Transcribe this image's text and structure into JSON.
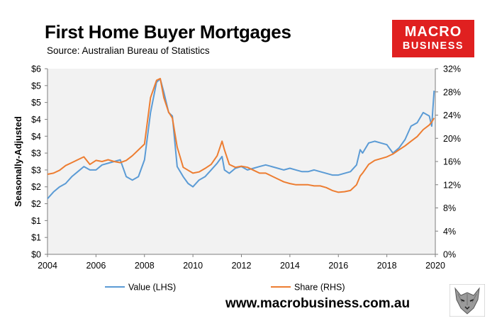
{
  "header": {
    "title": "First Home Buyer Mortgages",
    "subtitle": "Source: Australian Bureau of Statistics"
  },
  "logo": {
    "line1": "MACRO",
    "line2": "BUSINESS"
  },
  "footer": {
    "website": "www.macrobusiness.com.au"
  },
  "colors": {
    "value_series": "#5b9bd5",
    "share_series": "#ed7d31",
    "plot_bg": "#f2f2f2",
    "logo_bg": "#e02020"
  },
  "chart_data": {
    "type": "line",
    "title": "First Home Buyer Mortgages",
    "ylabel": "Seasonally-Adjusted",
    "xlim": [
      2004,
      2020
    ],
    "x_ticks": [
      "2004",
      "2006",
      "2008",
      "2010",
      "2012",
      "2014",
      "2016",
      "2018",
      "2020"
    ],
    "y_left_ticks": [
      "$0",
      "$1",
      "$1",
      "$2",
      "$2",
      "$3",
      "$3",
      "$4",
      "$4",
      "$5",
      "$5",
      "$6"
    ],
    "y_right_ticks": [
      "0%",
      "4%",
      "8%",
      "12%",
      "16%",
      "20%",
      "24%",
      "28%",
      "32%"
    ],
    "ylim_left": [
      0,
      5.5
    ],
    "ylim_right": [
      0,
      32
    ],
    "legend_position": "bottom",
    "grid": false,
    "series": [
      {
        "name": "Value (LHS)",
        "axis": "left",
        "x": [
          2004.0,
          2004.25,
          2004.5,
          2004.75,
          2005.0,
          2005.25,
          2005.5,
          2005.75,
          2006.0,
          2006.25,
          2006.5,
          2006.75,
          2007.0,
          2007.25,
          2007.5,
          2007.75,
          2008.0,
          2008.25,
          2008.5,
          2008.65,
          2008.8,
          2009.0,
          2009.15,
          2009.35,
          2009.6,
          2009.8,
          2010.0,
          2010.25,
          2010.5,
          2010.75,
          2011.0,
          2011.2,
          2011.3,
          2011.5,
          2011.75,
          2012.0,
          2012.25,
          2012.5,
          2012.75,
          2013.0,
          2013.25,
          2013.5,
          2013.75,
          2014.0,
          2014.25,
          2014.5,
          2014.75,
          2015.0,
          2015.25,
          2015.5,
          2015.75,
          2016.0,
          2016.25,
          2016.5,
          2016.75,
          2016.9,
          2017.0,
          2017.25,
          2017.5,
          2017.75,
          2018.0,
          2018.25,
          2018.5,
          2018.75,
          2019.0,
          2019.25,
          2019.5,
          2019.75,
          2019.85,
          2019.95
        ],
        "values": [
          1.65,
          1.85,
          2.0,
          2.1,
          2.3,
          2.45,
          2.6,
          2.5,
          2.5,
          2.65,
          2.7,
          2.75,
          2.8,
          2.3,
          2.2,
          2.3,
          2.8,
          4.2,
          5.1,
          5.2,
          4.8,
          4.2,
          4.1,
          2.6,
          2.3,
          2.1,
          2.0,
          2.2,
          2.3,
          2.5,
          2.7,
          2.9,
          2.5,
          2.4,
          2.55,
          2.6,
          2.5,
          2.55,
          2.6,
          2.65,
          2.6,
          2.55,
          2.5,
          2.55,
          2.5,
          2.45,
          2.45,
          2.5,
          2.45,
          2.4,
          2.35,
          2.35,
          2.4,
          2.45,
          2.65,
          3.1,
          3.0,
          3.3,
          3.35,
          3.3,
          3.25,
          3.0,
          3.15,
          3.4,
          3.8,
          3.9,
          4.2,
          4.1,
          3.8,
          4.85
        ]
      },
      {
        "name": "Share (RHS)",
        "axis": "right",
        "x": [
          2004.0,
          2004.25,
          2004.5,
          2004.75,
          2005.0,
          2005.25,
          2005.5,
          2005.75,
          2006.0,
          2006.25,
          2006.5,
          2006.75,
          2007.0,
          2007.25,
          2007.5,
          2007.75,
          2008.0,
          2008.25,
          2008.5,
          2008.65,
          2008.8,
          2009.0,
          2009.15,
          2009.35,
          2009.6,
          2009.8,
          2010.0,
          2010.25,
          2010.5,
          2010.75,
          2011.0,
          2011.2,
          2011.3,
          2011.5,
          2011.75,
          2012.0,
          2012.25,
          2012.5,
          2012.75,
          2013.0,
          2013.25,
          2013.5,
          2013.75,
          2014.0,
          2014.25,
          2014.5,
          2014.75,
          2015.0,
          2015.25,
          2015.5,
          2015.75,
          2016.0,
          2016.25,
          2016.5,
          2016.75,
          2016.9,
          2017.0,
          2017.25,
          2017.5,
          2017.75,
          2018.0,
          2018.25,
          2018.5,
          2018.75,
          2019.0,
          2019.25,
          2019.5,
          2019.75,
          2019.85,
          2019.95
        ],
        "values": [
          13.8,
          14.0,
          14.5,
          15.3,
          15.8,
          16.3,
          16.8,
          15.5,
          16.2,
          16.0,
          16.3,
          16.0,
          15.8,
          16.2,
          17.0,
          18.0,
          19.0,
          27.0,
          30.0,
          30.3,
          27.0,
          24.5,
          23.5,
          18.5,
          15.0,
          14.5,
          14.0,
          14.2,
          14.8,
          15.5,
          17.0,
          19.5,
          18.0,
          15.5,
          15.0,
          15.2,
          15.0,
          14.5,
          14.0,
          14.0,
          13.5,
          13.0,
          12.5,
          12.2,
          12.0,
          12.0,
          12.0,
          11.8,
          11.8,
          11.5,
          11.0,
          10.7,
          10.8,
          11.0,
          12.0,
          13.5,
          14.0,
          15.5,
          16.2,
          16.5,
          16.8,
          17.3,
          18.0,
          18.7,
          19.5,
          20.3,
          21.5,
          22.3,
          22.8,
          23.5
        ]
      }
    ]
  }
}
